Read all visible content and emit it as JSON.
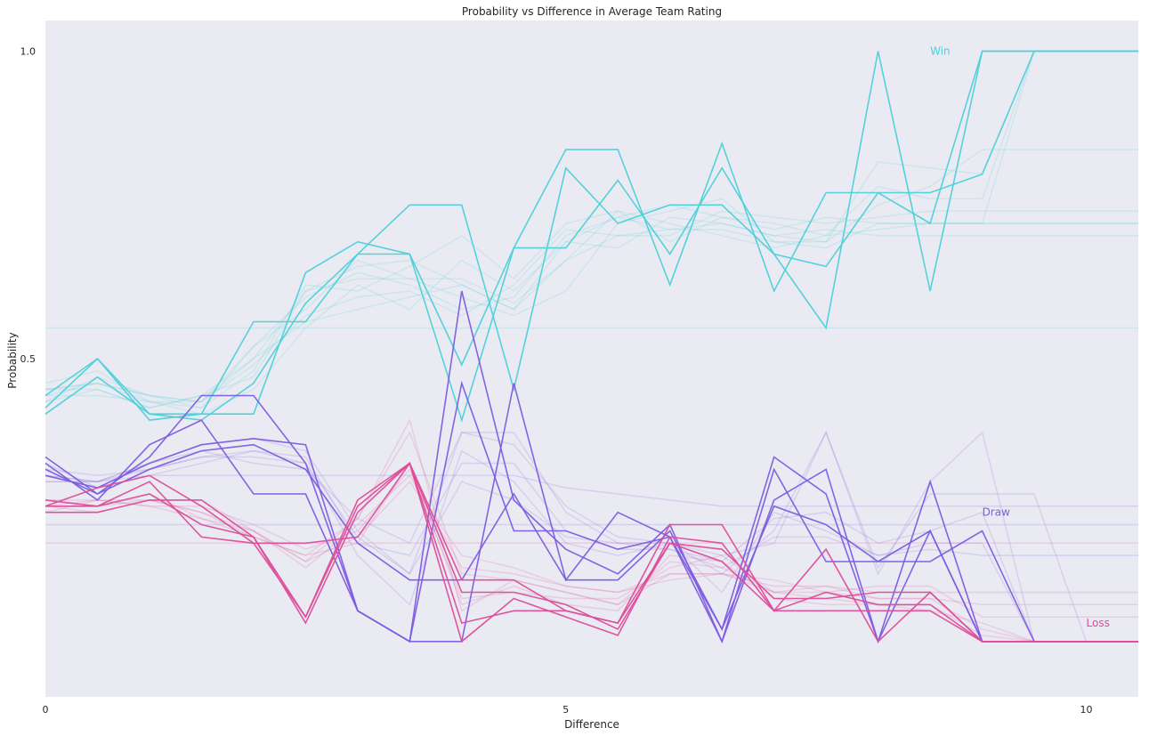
{
  "chart_data": {
    "type": "line",
    "title": "Probability vs Difference in Average Team Rating",
    "xlabel": "Difference",
    "ylabel": "Probability",
    "xlim": [
      0,
      10.5
    ],
    "ylim": [
      -0.05,
      1.05
    ],
    "xticks": [
      0,
      5,
      10
    ],
    "xtick_labels": [
      "0",
      "5",
      "10"
    ],
    "yticks": [
      0.5,
      1.0
    ],
    "ytick_labels": [
      "0.5",
      "1.0"
    ],
    "grid": false,
    "background": "#eaeaf2",
    "x": [
      0,
      0.5,
      1,
      1.5,
      2,
      2.5,
      3,
      3.5,
      4,
      4.5,
      5,
      5.5,
      6,
      6.5,
      7,
      7.5,
      8,
      8.5,
      9,
      9.5,
      10,
      10.5
    ],
    "annotations": [
      {
        "text": "Win",
        "x": 8.5,
        "y": 1.0,
        "color": "#4dd0d9"
      },
      {
        "text": "Draw",
        "x": 9.0,
        "y": 0.25,
        "color": "#7d5ce0"
      },
      {
        "text": "Loss",
        "x": 10.0,
        "y": 0.07,
        "color": "#dd4d9a"
      }
    ],
    "series": [
      {
        "group": "Win",
        "color": "#4dd0d9",
        "highlight": true,
        "values": [
          0.44,
          0.5,
          0.41,
          0.41,
          0.56,
          0.56,
          0.67,
          0.75,
          0.75,
          0.45,
          0.81,
          0.72,
          0.75,
          0.75,
          0.67,
          0.65,
          0.77,
          0.77,
          0.8,
          1.0,
          1.0,
          1.0
        ]
      },
      {
        "group": "Win",
        "color": "#4dd0d9",
        "highlight": true,
        "values": [
          0.41,
          0.47,
          0.41,
          0.4,
          0.46,
          0.59,
          0.67,
          0.67,
          0.4,
          0.68,
          0.68,
          0.79,
          0.67,
          0.81,
          0.67,
          0.55,
          1.0,
          0.61,
          1.0,
          1.0,
          1.0,
          1.0
        ]
      },
      {
        "group": "Win",
        "color": "#4dd0d9",
        "highlight": true,
        "values": [
          0.42,
          0.5,
          0.4,
          0.41,
          0.41,
          0.64,
          0.69,
          0.67,
          0.49,
          0.68,
          0.84,
          0.84,
          0.62,
          0.85,
          0.61,
          0.77,
          0.77,
          0.72,
          1.0,
          1.0,
          1.0,
          1.0
        ]
      },
      {
        "group": "Win",
        "color": "#4dd0d9",
        "highlight": false,
        "values": [
          0.45,
          0.46,
          0.44,
          0.43,
          0.52,
          0.6,
          0.64,
          0.62,
          0.58,
          0.6,
          0.7,
          0.73,
          0.71,
          0.72,
          0.7,
          0.69,
          0.75,
          0.78,
          0.84,
          0.84,
          0.84,
          0.84
        ]
      },
      {
        "group": "Win",
        "color": "#4dd0d9",
        "highlight": false,
        "values": [
          0.43,
          0.45,
          0.42,
          0.44,
          0.5,
          0.56,
          0.58,
          0.6,
          0.62,
          0.58,
          0.66,
          0.7,
          0.7,
          0.74,
          0.73,
          0.72,
          0.73,
          0.74,
          0.74,
          0.74,
          0.74,
          0.74
        ]
      },
      {
        "group": "Win",
        "color": "#4dd0d9",
        "highlight": false,
        "values": [
          0.46,
          0.48,
          0.43,
          0.42,
          0.48,
          0.62,
          0.61,
          0.65,
          0.7,
          0.63,
          0.72,
          0.74,
          0.72,
          0.7,
          0.68,
          0.7,
          0.71,
          0.72,
          0.72,
          1.0,
          1.0,
          1.0
        ]
      },
      {
        "group": "Win",
        "color": "#4dd0d9",
        "highlight": false,
        "values": [
          0.44,
          0.44,
          0.43,
          0.41,
          0.45,
          0.55,
          0.62,
          0.58,
          0.66,
          0.61,
          0.69,
          0.68,
          0.73,
          0.72,
          0.7,
          0.71,
          0.7,
          0.7,
          0.7,
          0.7,
          0.7,
          0.7
        ]
      },
      {
        "group": "Win",
        "color": "#4dd0d9",
        "highlight": false,
        "values": [
          0.43,
          0.47,
          0.44,
          0.42,
          0.52,
          0.58,
          0.66,
          0.63,
          0.6,
          0.57,
          0.61,
          0.72,
          0.74,
          0.76,
          0.69,
          0.69,
          0.82,
          0.81,
          0.8,
          1.0,
          1.0,
          1.0
        ]
      },
      {
        "group": "Win",
        "color": "#4dd0d9",
        "highlight": false,
        "values": [
          0.45,
          0.45,
          0.42,
          0.44,
          0.47,
          0.61,
          0.63,
          0.63,
          0.63,
          0.59,
          0.66,
          0.74,
          0.69,
          0.73,
          0.71,
          0.73,
          0.72,
          0.72,
          0.72,
          0.72,
          0.72,
          0.72
        ]
      },
      {
        "group": "Win",
        "color": "#4dd0d9",
        "highlight": false,
        "values": [
          0.44,
          0.46,
          0.43,
          0.43,
          0.49,
          0.57,
          0.6,
          0.61,
          0.57,
          0.62,
          0.71,
          0.7,
          0.71,
          0.71,
          0.69,
          0.68,
          0.72,
          0.72,
          0.72,
          0.72,
          0.72,
          0.72
        ]
      },
      {
        "group": "Win",
        "color": "#4dd0d9",
        "highlight": false,
        "values": [
          0.55,
          0.55,
          0.55,
          0.55,
          0.55,
          0.55,
          0.55,
          0.55,
          0.55,
          0.55,
          0.55,
          0.55,
          0.55,
          0.55,
          0.55,
          0.55,
          0.55,
          0.55,
          0.55,
          0.55,
          0.55,
          0.55
        ]
      },
      {
        "group": "Win",
        "color": "#4dd0d9",
        "highlight": false,
        "values": [
          0.45,
          0.46,
          0.44,
          0.43,
          0.5,
          0.61,
          0.65,
          0.66,
          0.62,
          0.58,
          0.69,
          0.73,
          0.75,
          0.73,
          0.72,
          0.7,
          0.78,
          0.76,
          0.76,
          1.0,
          1.0,
          1.0
        ]
      },
      {
        "group": "Draw",
        "color": "#7d5ce0",
        "highlight": true,
        "values": [
          0.32,
          0.28,
          0.34,
          0.44,
          0.44,
          0.33,
          0.09,
          0.04,
          0.61,
          0.27,
          0.19,
          0.15,
          0.23,
          0.04,
          0.32,
          0.17,
          0.17,
          0.17,
          0.22,
          0.04,
          0.04,
          0.04
        ]
      },
      {
        "group": "Draw",
        "color": "#7d5ce0",
        "highlight": true,
        "values": [
          0.31,
          0.29,
          0.33,
          0.36,
          0.37,
          0.36,
          0.09,
          0.04,
          0.46,
          0.22,
          0.22,
          0.19,
          0.21,
          0.06,
          0.26,
          0.23,
          0.17,
          0.22,
          0.04,
          0.04,
          0.04,
          0.04
        ]
      },
      {
        "group": "Draw",
        "color": "#7d5ce0",
        "highlight": true,
        "values": [
          0.33,
          0.27,
          0.36,
          0.4,
          0.28,
          0.28,
          0.09,
          0.04,
          0.04,
          0.46,
          0.14,
          0.14,
          0.22,
          0.06,
          0.34,
          0.28,
          0.04,
          0.3,
          0.04,
          0.04,
          0.04,
          0.04
        ]
      },
      {
        "group": "Draw",
        "color": "#7d5ce0",
        "highlight": true,
        "values": [
          0.34,
          0.28,
          0.32,
          0.35,
          0.36,
          0.32,
          0.2,
          0.14,
          0.14,
          0.28,
          0.14,
          0.25,
          0.21,
          0.04,
          0.27,
          0.32,
          0.04,
          0.22,
          0.04,
          0.04,
          0.04,
          0.04
        ]
      },
      {
        "group": "Draw",
        "color": "#7d5ce0",
        "highlight": false,
        "values": [
          0.3,
          0.3,
          0.31,
          0.31,
          0.31,
          0.31,
          0.31,
          0.31,
          0.31,
          0.31,
          0.29,
          0.28,
          0.27,
          0.26,
          0.26,
          0.26,
          0.26,
          0.26,
          0.26,
          0.26,
          0.26,
          0.26
        ]
      },
      {
        "group": "Draw",
        "color": "#7d5ce0",
        "highlight": false,
        "values": [
          0.31,
          0.3,
          0.33,
          0.36,
          0.37,
          0.35,
          0.22,
          0.15,
          0.38,
          0.38,
          0.25,
          0.2,
          0.2,
          0.15,
          0.22,
          0.38,
          0.15,
          0.3,
          0.38,
          0.04,
          0.04,
          0.04
        ]
      },
      {
        "group": "Draw",
        "color": "#7d5ce0",
        "highlight": false,
        "values": [
          0.32,
          0.31,
          0.32,
          0.34,
          0.35,
          0.34,
          0.2,
          0.18,
          0.33,
          0.33,
          0.22,
          0.19,
          0.19,
          0.17,
          0.24,
          0.25,
          0.2,
          0.22,
          0.25,
          0.04,
          0.04,
          0.04
        ]
      },
      {
        "group": "Draw",
        "color": "#7d5ce0",
        "highlight": false,
        "values": [
          0.33,
          0.29,
          0.31,
          0.33,
          0.35,
          0.33,
          0.18,
          0.1,
          0.35,
          0.3,
          0.2,
          0.18,
          0.2,
          0.12,
          0.25,
          0.22,
          0.18,
          0.2,
          0.2,
          0.04,
          0.04,
          0.04
        ]
      },
      {
        "group": "Draw",
        "color": "#7d5ce0",
        "highlight": false,
        "values": [
          0.3,
          0.3,
          0.33,
          0.35,
          0.33,
          0.32,
          0.24,
          0.2,
          0.38,
          0.36,
          0.26,
          0.21,
          0.2,
          0.18,
          0.2,
          0.38,
          0.16,
          0.28,
          0.28,
          0.28,
          0.04,
          0.04
        ]
      },
      {
        "group": "Draw",
        "color": "#7d5ce0",
        "highlight": false,
        "values": [
          0.23,
          0.23,
          0.23,
          0.23,
          0.23,
          0.23,
          0.23,
          0.23,
          0.23,
          0.23,
          0.23,
          0.23,
          0.23,
          0.23,
          0.23,
          0.23,
          0.23,
          0.23,
          0.23,
          0.23,
          0.23,
          0.23
        ]
      },
      {
        "group": "Draw",
        "color": "#7d5ce0",
        "highlight": false,
        "values": [
          0.31,
          0.3,
          0.32,
          0.34,
          0.34,
          0.33,
          0.21,
          0.15,
          0.3,
          0.27,
          0.21,
          0.2,
          0.19,
          0.16,
          0.21,
          0.21,
          0.18,
          0.19,
          0.18,
          0.18,
          0.18,
          0.18
        ]
      },
      {
        "group": "Loss",
        "color": "#dd4d9a",
        "highlight": true,
        "values": [
          0.26,
          0.29,
          0.31,
          0.26,
          0.2,
          0.2,
          0.21,
          0.33,
          0.12,
          0.12,
          0.1,
          0.06,
          0.2,
          0.19,
          0.11,
          0.11,
          0.12,
          0.12,
          0.04,
          0.04,
          0.04,
          0.04
        ]
      },
      {
        "group": "Loss",
        "color": "#dd4d9a",
        "highlight": true,
        "values": [
          0.27,
          0.26,
          0.28,
          0.23,
          0.21,
          0.08,
          0.26,
          0.33,
          0.14,
          0.14,
          0.09,
          0.07,
          0.23,
          0.23,
          0.09,
          0.19,
          0.04,
          0.12,
          0.04,
          0.04,
          0.04,
          0.04
        ]
      },
      {
        "group": "Loss",
        "color": "#dd4d9a",
        "highlight": true,
        "values": [
          0.25,
          0.25,
          0.27,
          0.27,
          0.21,
          0.07,
          0.25,
          0.33,
          0.07,
          0.09,
          0.09,
          0.07,
          0.2,
          0.17,
          0.09,
          0.09,
          0.09,
          0.09,
          0.04,
          0.04,
          0.04,
          0.04
        ]
      },
      {
        "group": "Loss",
        "color": "#dd4d9a",
        "highlight": true,
        "values": [
          0.26,
          0.26,
          0.3,
          0.21,
          0.2,
          0.08,
          0.27,
          0.33,
          0.04,
          0.11,
          0.08,
          0.05,
          0.21,
          0.2,
          0.09,
          0.12,
          0.1,
          0.1,
          0.04,
          0.04,
          0.04,
          0.04
        ]
      },
      {
        "group": "Loss",
        "color": "#dd4d9a",
        "highlight": false,
        "values": [
          0.26,
          0.27,
          0.27,
          0.25,
          0.22,
          0.17,
          0.21,
          0.3,
          0.18,
          0.16,
          0.13,
          0.12,
          0.15,
          0.15,
          0.13,
          0.13,
          0.12,
          0.12,
          0.12,
          0.12,
          0.12,
          0.12
        ]
      },
      {
        "group": "Loss",
        "color": "#dd4d9a",
        "highlight": false,
        "values": [
          0.2,
          0.2,
          0.2,
          0.2,
          0.2,
          0.2,
          0.2,
          0.2,
          0.2,
          0.2,
          0.2,
          0.2,
          0.2,
          0.2,
          0.2,
          0.2,
          0.2,
          0.2,
          0.2,
          0.2,
          0.2,
          0.2
        ]
      },
      {
        "group": "Loss",
        "color": "#dd4d9a",
        "highlight": false,
        "values": [
          0.27,
          0.26,
          0.28,
          0.24,
          0.21,
          0.18,
          0.24,
          0.38,
          0.15,
          0.14,
          0.12,
          0.1,
          0.17,
          0.16,
          0.12,
          0.11,
          0.1,
          0.09,
          0.07,
          0.04,
          0.04,
          0.04
        ]
      },
      {
        "group": "Loss",
        "color": "#dd4d9a",
        "highlight": false,
        "values": [
          0.25,
          0.27,
          0.26,
          0.26,
          0.23,
          0.19,
          0.22,
          0.32,
          0.11,
          0.12,
          0.11,
          0.11,
          0.16,
          0.18,
          0.12,
          0.13,
          0.11,
          0.11,
          0.06,
          0.04,
          0.04,
          0.04
        ]
      },
      {
        "group": "Loss",
        "color": "#dd4d9a",
        "highlight": false,
        "values": [
          0.26,
          0.25,
          0.27,
          0.27,
          0.22,
          0.16,
          0.23,
          0.31,
          0.16,
          0.15,
          0.13,
          0.12,
          0.14,
          0.15,
          0.14,
          0.12,
          0.13,
          0.13,
          0.08,
          0.08,
          0.08,
          0.08
        ]
      },
      {
        "group": "Loss",
        "color": "#dd4d9a",
        "highlight": false,
        "values": [
          0.26,
          0.26,
          0.27,
          0.25,
          0.21,
          0.18,
          0.2,
          0.33,
          0.1,
          0.13,
          0.1,
          0.09,
          0.18,
          0.17,
          0.11,
          0.1,
          0.1,
          0.1,
          0.05,
          0.04,
          0.04,
          0.04
        ]
      },
      {
        "group": "Loss",
        "color": "#dd4d9a",
        "highlight": false,
        "values": [
          0.27,
          0.27,
          0.26,
          0.24,
          0.22,
          0.17,
          0.24,
          0.4,
          0.09,
          0.14,
          0.12,
          0.1,
          0.15,
          0.15,
          0.12,
          0.12,
          0.11,
          0.11,
          0.1,
          0.1,
          0.1,
          0.1
        ]
      }
    ]
  }
}
